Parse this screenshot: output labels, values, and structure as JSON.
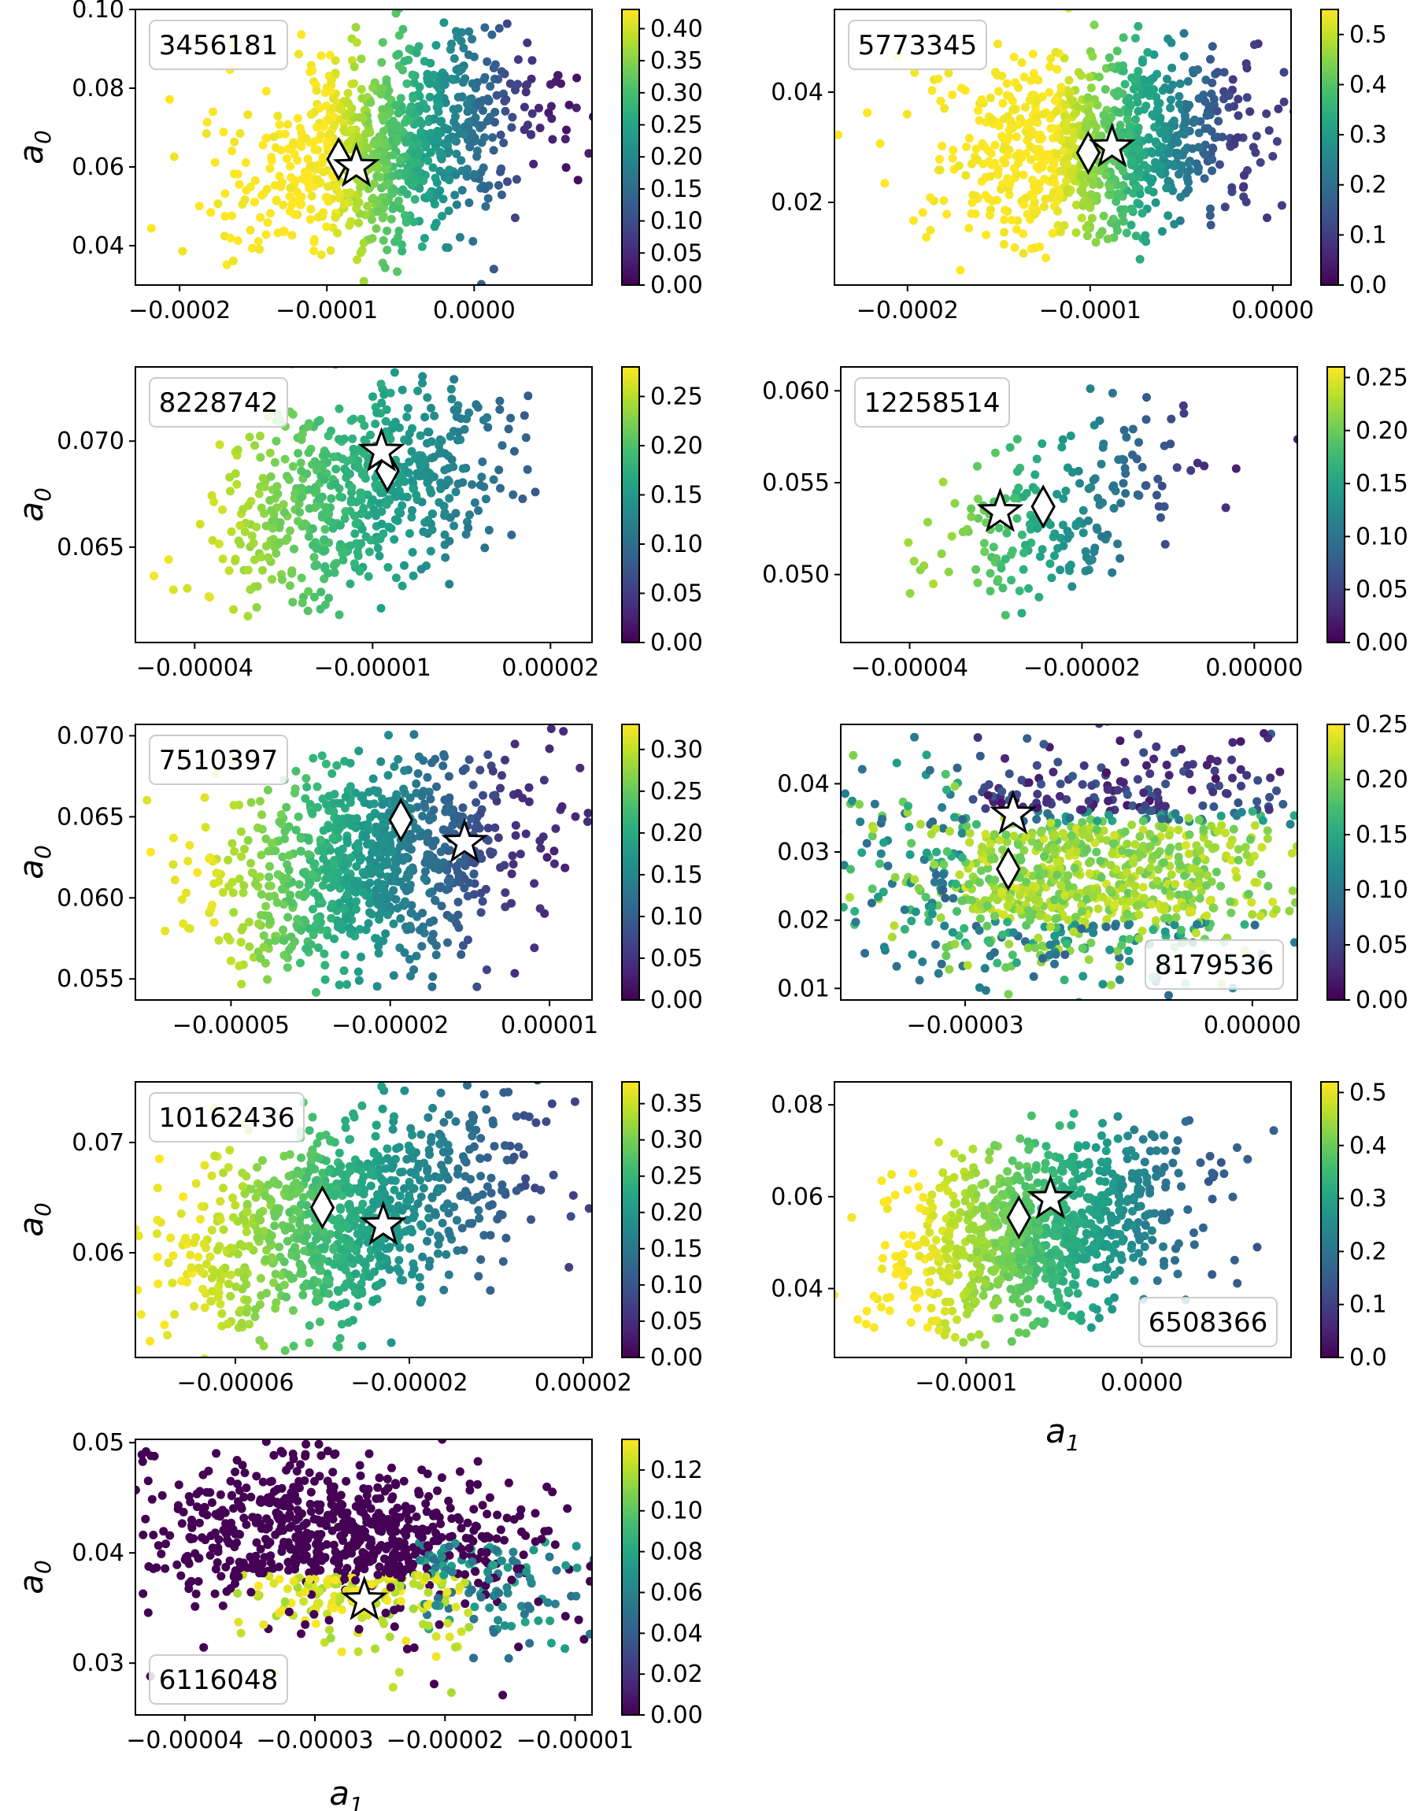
{
  "figure": {
    "xlabel_sym": "a",
    "xlabel_sub": "1",
    "ylabel_sym": "a",
    "ylabel_sub": "0"
  },
  "chart_data": [
    {
      "type": "scatter",
      "label": "3456181",
      "label_position": "top-left",
      "xlabel": "",
      "ylabel": "a0",
      "xlim": [
        -0.00023,
        8e-05
      ],
      "ylim": [
        0.03,
        0.1
      ],
      "xticks": [
        -0.0002,
        -0.0001,
        0.0
      ],
      "xtick_labels": [
        "−0.0002",
        "−0.0001",
        "0.0000"
      ],
      "yticks": [
        0.04,
        0.06,
        0.08,
        0.1
      ],
      "ytick_labels": [
        "0.04",
        "0.06",
        "0.08",
        "0.10"
      ],
      "cbar_ticks": [
        "0.00",
        "0.05",
        "0.10",
        "0.15",
        "0.20",
        "0.25",
        "0.30",
        "0.35",
        "0.40"
      ],
      "cbar_range": [
        0,
        0.43
      ],
      "cloud": {
        "cx": -6e-05,
        "cy": 0.065,
        "rx": 0.00012,
        "ry": 0.03,
        "tilt": 0.35,
        "n": 900,
        "color_low_x": -0.0001,
        "color_high_x": 5e-05,
        "vmin_at": 0.43,
        "vmax_at": 0.03
      },
      "star": {
        "x": -8e-05,
        "y": 0.06
      },
      "diamond": {
        "x": -9.2e-05,
        "y": 0.062
      }
    },
    {
      "type": "scatter",
      "label": "5773345",
      "label_position": "top-left",
      "xlabel": "",
      "ylabel": "",
      "xlim": [
        -0.00024,
        1e-05
      ],
      "ylim": [
        0.005,
        0.055
      ],
      "xticks": [
        -0.0002,
        -0.0001,
        0.0
      ],
      "xtick_labels": [
        "−0.0002",
        "−0.0001",
        "0.0000"
      ],
      "yticks": [
        0.02,
        0.04
      ],
      "ytick_labels": [
        "0.02",
        "0.04"
      ],
      "cbar_ticks": [
        "0.0",
        "0.1",
        "0.2",
        "0.3",
        "0.4",
        "0.5"
      ],
      "cbar_range": [
        0,
        0.55
      ],
      "cloud": {
        "cx": -9.5e-05,
        "cy": 0.03,
        "rx": 0.0001,
        "ry": 0.019,
        "tilt": 0.15,
        "n": 900,
        "color_low_x": -0.00012,
        "color_high_x": -2e-05,
        "vmin_at": 0.55,
        "vmax_at": 0.1
      },
      "star": {
        "x": -8.8e-05,
        "y": 0.03
      },
      "diamond": {
        "x": -0.000101,
        "y": 0.029
      }
    },
    {
      "type": "scatter",
      "label": "8228742",
      "label_position": "top-left",
      "xlabel": "",
      "ylabel": "a0",
      "xlim": [
        -5e-05,
        2.7e-05
      ],
      "ylim": [
        0.0605,
        0.0735
      ],
      "xticks": [
        -4e-05,
        -1e-05,
        2e-05
      ],
      "xtick_labels": [
        "−0.00004",
        "−0.00001",
        "0.00002"
      ],
      "yticks": [
        0.065,
        0.07
      ],
      "ytick_labels": [
        "0.065",
        "0.070"
      ],
      "cbar_ticks": [
        "0.00",
        "0.05",
        "0.10",
        "0.15",
        "0.20",
        "0.25"
      ],
      "cbar_range": [
        0,
        0.28
      ],
      "cloud": {
        "cx": -1.2e-05,
        "cy": 0.0675,
        "rx": 3e-05,
        "ry": 0.0055,
        "tilt": 0.4,
        "n": 600,
        "color_low_x": -4e-05,
        "color_high_x": 2e-05,
        "vmin_at": 0.27,
        "vmax_at": 0.07
      },
      "star": {
        "x": -8.5e-06,
        "y": 0.0695
      },
      "diamond": {
        "x": -7.5e-06,
        "y": 0.0686
      }
    },
    {
      "type": "scatter",
      "label": "12258514",
      "label_position": "top-left",
      "xlabel": "",
      "ylabel": "",
      "xlim": [
        -4.8e-05,
        5e-06
      ],
      "ylim": [
        0.0463,
        0.0613
      ],
      "xticks": [
        -4e-05,
        -2e-05,
        0.0
      ],
      "xtick_labels": [
        "−0.00004",
        "−0.00002",
        "0.00000"
      ],
      "yticks": [
        0.05,
        0.055,
        0.06
      ],
      "ytick_labels": [
        "0.050",
        "0.055",
        "0.060"
      ],
      "cbar_ticks": [
        "0.00",
        "0.05",
        "0.10",
        "0.15",
        "0.20",
        "0.25"
      ],
      "cbar_range": [
        0,
        0.26
      ],
      "cloud": {
        "cx": -2.2e-05,
        "cy": 0.0535,
        "rx": 1.8e-05,
        "ry": 0.0055,
        "tilt": 0.5,
        "n": 200,
        "color_low_x": -3.5e-05,
        "color_high_x": -5e-06,
        "vmin_at": 0.22,
        "vmax_at": 0.03
      },
      "star": {
        "x": -2.95e-05,
        "y": 0.0534
      },
      "diamond": {
        "x": -2.45e-05,
        "y": 0.0537
      }
    },
    {
      "type": "scatter",
      "label": "7510397",
      "label_position": "top-left",
      "xlabel": "",
      "ylabel": "a0",
      "xlim": [
        -6.8e-05,
        1.8e-05
      ],
      "ylim": [
        0.0537,
        0.0707
      ],
      "xticks": [
        -5e-05,
        -2e-05,
        1e-05
      ],
      "xtick_labels": [
        "−0.00005",
        "−0.00002",
        "0.00001"
      ],
      "yticks": [
        0.055,
        0.06,
        0.065,
        0.07
      ],
      "ytick_labels": [
        "0.055",
        "0.060",
        "0.065",
        "0.070"
      ],
      "cbar_ticks": [
        "0.00",
        "0.05",
        "0.10",
        "0.15",
        "0.20",
        "0.25",
        "0.30"
      ],
      "cbar_range": [
        0,
        0.33
      ],
      "cloud": {
        "cx": -2.5e-05,
        "cy": 0.062,
        "rx": 3.8e-05,
        "ry": 0.0075,
        "tilt": 0.3,
        "n": 900,
        "color_low_x": -5.5e-05,
        "color_high_x": 5e-06,
        "vmin_at": 0.32,
        "vmax_at": 0.04
      },
      "star": {
        "x": -6e-06,
        "y": 0.0634
      },
      "diamond": {
        "x": -1.8e-05,
        "y": 0.0648
      }
    },
    {
      "type": "scatter",
      "label": "8179536",
      "label_position": "bottom-right",
      "xlabel": "",
      "ylabel": "",
      "xlim": [
        -4.3e-05,
        4.7e-06
      ],
      "ylim": [
        0.0083,
        0.0487
      ],
      "xticks": [
        -3e-05,
        0.0
      ],
      "xtick_labels": [
        "−0.00003",
        "0.00000"
      ],
      "yticks": [
        0.01,
        0.02,
        0.03,
        0.04
      ],
      "ytick_labels": [
        "0.01",
        "0.02",
        "0.03",
        "0.04"
      ],
      "cbar_ticks": [
        "0.00",
        "0.05",
        "0.10",
        "0.15",
        "0.20",
        "0.25"
      ],
      "cbar_range": [
        0,
        0.25
      ],
      "cloud": {
        "cx": -1.8e-05,
        "cy": 0.028,
        "rx": 2.8e-05,
        "ry": 0.02,
        "tilt": 0.1,
        "n": 1100,
        "color_low_x": -4e-05,
        "color_high_x": 0.0,
        "vmin_at": 0.22,
        "vmax_at": 0.0
      },
      "star": {
        "x": -2.5e-05,
        "y": 0.0355
      },
      "diamond": {
        "x": -2.55e-05,
        "y": 0.0275
      }
    },
    {
      "type": "scatter",
      "label": "10162436",
      "label_position": "top-left",
      "xlabel": "",
      "ylabel": "a0",
      "xlim": [
        -8.3e-05,
        2.2e-05
      ],
      "ylim": [
        0.0505,
        0.0755
      ],
      "xticks": [
        -6e-05,
        -2e-05,
        2e-05
      ],
      "xtick_labels": [
        "−0.00006",
        "−0.00002",
        "0.00002"
      ],
      "yticks": [
        0.06,
        0.07
      ],
      "ytick_labels": [
        "0.06",
        "0.07"
      ],
      "cbar_ticks": [
        "0.00",
        "0.05",
        "0.10",
        "0.15",
        "0.20",
        "0.25",
        "0.30",
        "0.35"
      ],
      "cbar_range": [
        0,
        0.38
      ],
      "cloud": {
        "cx": -3.5e-05,
        "cy": 0.063,
        "rx": 4.8e-05,
        "ry": 0.011,
        "tilt": 0.45,
        "n": 900,
        "color_low_x": -7e-05,
        "color_high_x": 1e-05,
        "vmin_at": 0.37,
        "vmax_at": 0.08
      },
      "star": {
        "x": -2.6e-05,
        "y": 0.0625
      },
      "diamond": {
        "x": -4e-05,
        "y": 0.0641
      }
    },
    {
      "type": "scatter",
      "label": "6508366",
      "label_position": "bottom-right",
      "xlabel": "a1",
      "ylabel": "",
      "xlim": [
        -0.000175,
        8.5e-05
      ],
      "ylim": [
        0.025,
        0.085
      ],
      "xticks": [
        -0.0001,
        0.0
      ],
      "xtick_labels": [
        "−0.0001",
        "0.0000"
      ],
      "yticks": [
        0.04,
        0.06,
        0.08
      ],
      "ytick_labels": [
        "0.04",
        "0.06",
        "0.08"
      ],
      "cbar_ticks": [
        "0.0",
        "0.1",
        "0.2",
        "0.3",
        "0.4",
        "0.5"
      ],
      "cbar_range": [
        0,
        0.52
      ],
      "cloud": {
        "cx": -6e-05,
        "cy": 0.052,
        "rx": 0.0001,
        "ry": 0.022,
        "tilt": 0.3,
        "n": 900,
        "color_low_x": -0.00013,
        "color_high_x": 4e-05,
        "vmin_at": 0.52,
        "vmax_at": 0.15
      },
      "star": {
        "x": -5.2e-05,
        "y": 0.0595
      },
      "diamond": {
        "x": -7e-05,
        "y": 0.0555
      }
    },
    {
      "type": "scatter",
      "label": "6116048",
      "label_position": "bottom-left",
      "xlabel": "a1",
      "ylabel": "a0",
      "xlim": [
        -4.38e-05,
        -8.7e-06
      ],
      "ylim": [
        0.0253,
        0.0503
      ],
      "xticks": [
        -4e-05,
        -3e-05,
        -2e-05,
        -1e-05
      ],
      "xtick_labels": [
        "−0.00004",
        "−0.00003",
        "−0.00002",
        "−0.00001"
      ],
      "yticks": [
        0.03,
        0.04,
        0.05
      ],
      "ytick_labels": [
        "0.03",
        "0.04",
        "0.05"
      ],
      "cbar_ticks": [
        "0.00",
        "0.02",
        "0.04",
        "0.06",
        "0.08",
        "0.10",
        "0.12"
      ],
      "cbar_range": [
        0,
        0.135
      ],
      "cloud": {
        "cx": -2.7e-05,
        "cy": 0.04,
        "rx": 2e-05,
        "ry": 0.009,
        "tilt": -0.35,
        "n": 1000,
        "color_low_x": -3e-05,
        "color_high_x": -2e-05,
        "vmin_at": 0.0,
        "vmax_at": 0.0
      },
      "star": {
        "x": -2.62e-05,
        "y": 0.0357
      },
      "diamond": null
    }
  ]
}
